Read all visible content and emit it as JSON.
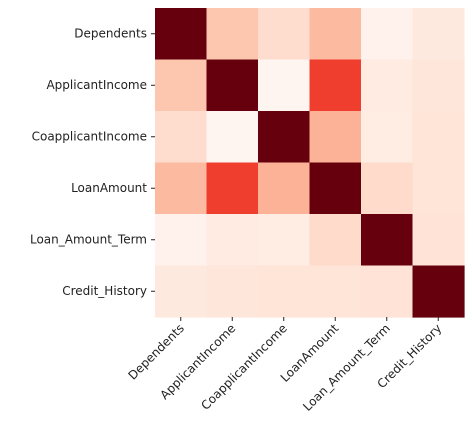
{
  "chart_data": {
    "type": "heatmap",
    "title": "",
    "xlabel": "",
    "ylabel": "",
    "colormap": "Reds",
    "colorbar": false,
    "rows": [
      "Dependents",
      "ApplicantIncome",
      "CoapplicantIncome",
      "LoanAmount",
      "Loan_Amount_Term",
      "Credit_History"
    ],
    "cols": [
      "Dependents",
      "ApplicantIncome",
      "CoapplicantIncome",
      "LoanAmount",
      "Loan_Amount_Term",
      "Credit_History"
    ],
    "values": [
      [
        1.0,
        0.12,
        0.03,
        0.16,
        -0.1,
        -0.04
      ],
      [
        0.12,
        1.0,
        -0.12,
        0.57,
        -0.05,
        -0.02
      ],
      [
        0.03,
        -0.12,
        1.0,
        0.19,
        -0.06,
        -0.01
      ],
      [
        0.16,
        0.57,
        0.19,
        1.0,
        0.04,
        -0.01
      ],
      [
        -0.1,
        -0.05,
        -0.06,
        0.04,
        1.0,
        0.0
      ],
      [
        -0.04,
        -0.02,
        -0.01,
        -0.01,
        0.0,
        1.0
      ]
    ],
    "vmin": -0.12,
    "vmax": 1.0
  }
}
